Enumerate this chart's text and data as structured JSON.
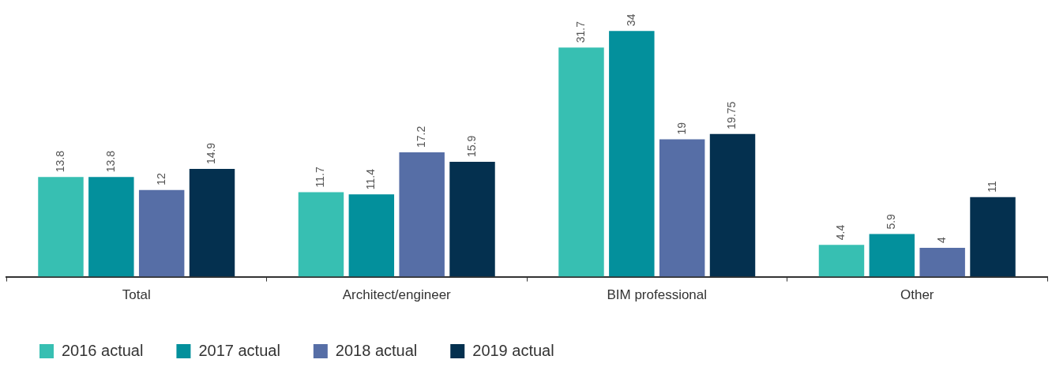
{
  "chart_data": {
    "type": "bar",
    "categories": [
      "Total",
      "Architect/engineer",
      "BIM professional",
      "Other"
    ],
    "series": [
      {
        "name": "2016 actual",
        "color": "#37bfb2",
        "values": [
          13.8,
          11.7,
          31.7,
          4.4
        ]
      },
      {
        "name": "2017 actual",
        "color": "#03909c",
        "values": [
          13.8,
          11.4,
          34,
          5.9
        ]
      },
      {
        "name": "2018 actual",
        "color": "#566ea6",
        "values": [
          12,
          17.2,
          19,
          4
        ]
      },
      {
        "name": "2019 actual",
        "color": "#04304f",
        "values": [
          14.9,
          15.9,
          19.75,
          11
        ]
      }
    ],
    "tick_labels": "x",
    "data_labels": true,
    "legend": "bottom left",
    "grid": false
  }
}
